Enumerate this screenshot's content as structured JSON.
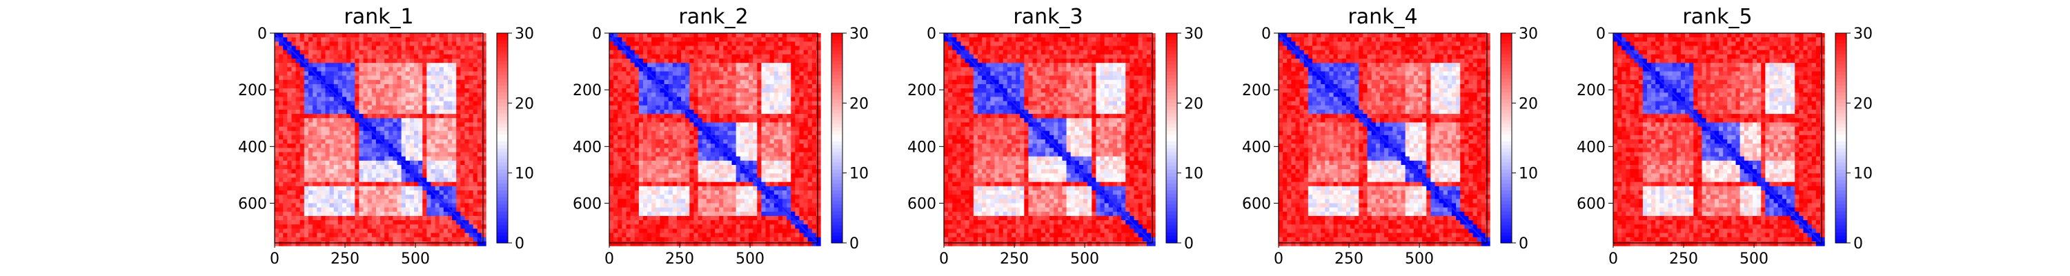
{
  "chart_data": [
    {
      "type": "heatmap",
      "title": "rank_1",
      "xlabel": "",
      "ylabel": "",
      "matrix_size": 740,
      "xlim": [
        0,
        740
      ],
      "ylim": [
        740,
        0
      ],
      "x_ticks": [
        0,
        250,
        500
      ],
      "y_ticks": [
        0,
        200,
        400,
        600
      ],
      "colorbar": {
        "min": 0,
        "max": 30,
        "ticks": [
          0,
          10,
          20,
          30
        ],
        "colormap": "bwr"
      },
      "domains": [
        [
          110,
          290
        ],
        [
          300,
          450
        ],
        [
          450,
          520
        ],
        [
          540,
          640
        ]
      ],
      "block_values": [
        [
          5,
          22,
          20,
          14
        ],
        [
          22,
          5,
          14,
          20
        ],
        [
          20,
          14,
          5,
          14
        ],
        [
          14,
          20,
          14,
          5
        ]
      ],
      "background_value": 27
    },
    {
      "type": "heatmap",
      "title": "rank_2",
      "xlabel": "",
      "ylabel": "",
      "matrix_size": 740,
      "xlim": [
        0,
        740
      ],
      "ylim": [
        740,
        0
      ],
      "x_ticks": [
        0,
        250,
        500
      ],
      "y_ticks": [
        0,
        200,
        400,
        600
      ],
      "colorbar": {
        "min": 0,
        "max": 30,
        "ticks": [
          0,
          10,
          20,
          30
        ],
        "colormap": "bwr"
      },
      "domains": [
        [
          110,
          290
        ],
        [
          310,
          450
        ],
        [
          450,
          520
        ],
        [
          540,
          640
        ]
      ],
      "block_values": [
        [
          5,
          25,
          22,
          15
        ],
        [
          25,
          5,
          16,
          22
        ],
        [
          22,
          16,
          5,
          16
        ],
        [
          15,
          22,
          16,
          5
        ]
      ],
      "background_value": 28
    },
    {
      "type": "heatmap",
      "title": "rank_3",
      "xlabel": "",
      "ylabel": "",
      "matrix_size": 740,
      "xlim": [
        0,
        740
      ],
      "ylim": [
        740,
        0
      ],
      "x_ticks": [
        0,
        250,
        500
      ],
      "y_ticks": [
        0,
        200,
        400,
        600
      ],
      "colorbar": {
        "min": 0,
        "max": 30,
        "ticks": [
          0,
          10,
          20,
          30
        ],
        "colormap": "bwr"
      },
      "domains": [
        [
          110,
          290
        ],
        [
          300,
          440
        ],
        [
          440,
          530
        ],
        [
          540,
          640
        ]
      ],
      "block_values": [
        [
          5,
          25,
          23,
          15
        ],
        [
          25,
          6,
          16,
          22
        ],
        [
          23,
          16,
          6,
          16
        ],
        [
          15,
          22,
          16,
          5
        ]
      ],
      "background_value": 28
    },
    {
      "type": "heatmap",
      "title": "rank_4",
      "xlabel": "",
      "ylabel": "",
      "matrix_size": 740,
      "xlim": [
        0,
        740
      ],
      "ylim": [
        740,
        0
      ],
      "x_ticks": [
        0,
        250,
        500
      ],
      "y_ticks": [
        0,
        200,
        400,
        600
      ],
      "colorbar": {
        "min": 0,
        "max": 30,
        "ticks": [
          0,
          10,
          20,
          30
        ],
        "colormap": "bwr"
      },
      "domains": [
        [
          110,
          290
        ],
        [
          310,
          450
        ],
        [
          450,
          520
        ],
        [
          540,
          640
        ]
      ],
      "block_values": [
        [
          5,
          25,
          22,
          15
        ],
        [
          25,
          5,
          16,
          22
        ],
        [
          22,
          16,
          5,
          16
        ],
        [
          15,
          22,
          16,
          5
        ]
      ],
      "background_value": 28
    },
    {
      "type": "heatmap",
      "title": "rank_5",
      "xlabel": "",
      "ylabel": "",
      "matrix_size": 740,
      "xlim": [
        0,
        740
      ],
      "ylim": [
        740,
        0
      ],
      "x_ticks": [
        0,
        250,
        500
      ],
      "y_ticks": [
        0,
        200,
        400,
        600
      ],
      "colorbar": {
        "min": 0,
        "max": 30,
        "ticks": [
          0,
          10,
          20,
          30
        ],
        "colormap": "bwr"
      },
      "domains": [
        [
          110,
          290
        ],
        [
          320,
          450
        ],
        [
          450,
          520
        ],
        [
          540,
          640
        ]
      ],
      "block_values": [
        [
          5,
          25,
          23,
          15
        ],
        [
          25,
          6,
          17,
          22
        ],
        [
          23,
          17,
          6,
          16
        ],
        [
          15,
          22,
          16,
          5
        ]
      ],
      "background_value": 28
    }
  ]
}
